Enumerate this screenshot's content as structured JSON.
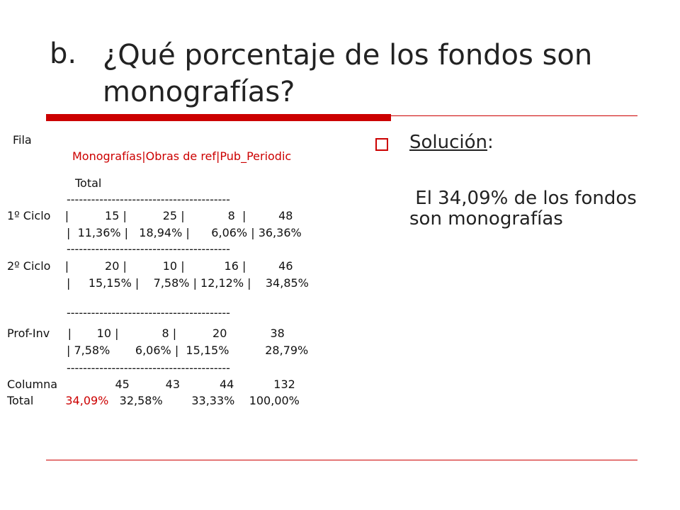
{
  "title": {
    "number": "b.",
    "text": "¿Qué porcentaje de los fondos son monografías?"
  },
  "table_block": {
    "row_header_label": "Fila",
    "column_headers": "Monografías|Obras de ref|Pub_Periodic",
    "total_header": "Total",
    "separator": "----------------------------------------",
    "rows": [
      {
        "label": "1º Ciclo",
        "counts_line": "1º Ciclo    |          15 |          25 |            8  |         48",
        "pct_line": "|  11,36% |   18,94% |      6,06% | 36,36%"
      },
      {
        "label": "2º Ciclo",
        "counts_line": "2º Ciclo    |          20 |          10 |           16 |         46",
        "pct_line": "|     15,15% |    7,58% | 12,12% |    34,85%"
      },
      {
        "label": "Prof-Inv",
        "counts_line": "Prof-Inv     |       10 |            8 |          20            38",
        "pct_line": "| 7,58%       6,06% |  15,15%          28,79%"
      }
    ],
    "column_totals_line": "Columna                45          43           44           132",
    "total_pct_label": "Total",
    "total_pct_highlight": "34,09%",
    "total_pct_rest": "   32,58%        33,33%    100,00%"
  },
  "solution": {
    "label": "Solución",
    "colon": ":",
    "answer": " El 34,09% de los fondos son monografías"
  },
  "colors": {
    "accent": "#cc0000",
    "text": "#222222"
  }
}
